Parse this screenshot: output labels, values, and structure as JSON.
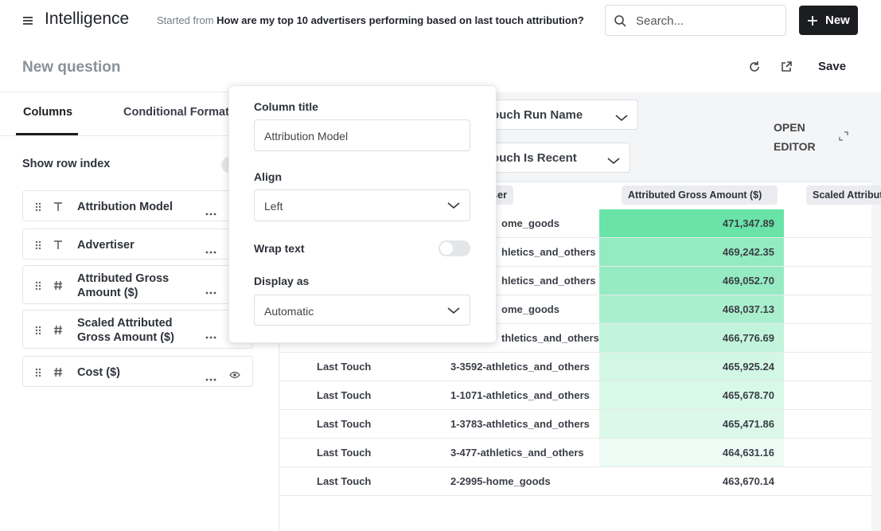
{
  "header": {
    "app_title": "Intelligence",
    "started_from_label": "Started from",
    "started_from_question": "How are my top 10 advertisers performing based on last touch attribution?",
    "search_placeholder": "Search...",
    "new_button": "New"
  },
  "toolbar": {
    "title": "New question",
    "save": "Save"
  },
  "sidebar": {
    "tabs": [
      "Columns",
      "Conditional Formatting"
    ],
    "show_row_index": "Show row index",
    "columns": [
      {
        "name": "Attribution Model",
        "kind": "text"
      },
      {
        "name": "Advertiser",
        "kind": "text"
      },
      {
        "name": "Attributed Gross Amount ($)",
        "kind": "number"
      },
      {
        "name": "Scaled Attributed Gross Amount ($)",
        "kind": "number"
      },
      {
        "name": "Cost ($)",
        "kind": "number"
      }
    ]
  },
  "popover": {
    "column_title_label": "Column title",
    "column_title_value": "Attribution Model",
    "align_label": "Align",
    "align_value": "Left",
    "wrap_text_label": "Wrap text",
    "display_as_label": "Display as",
    "display_as_value": "Automatic"
  },
  "filters": [
    "Last Touch Run Name",
    "Last Touch Is Recent"
  ],
  "open_editor": "OPEN EDITOR",
  "table": {
    "headers": [
      "ser",
      "Attributed Gross Amount ($)",
      "Scaled Attributed Gross Amount ($)"
    ],
    "rows": [
      {
        "advertiser": "ome_goods",
        "amount": "471,347.89"
      },
      {
        "advertiser": "hletics_and_others",
        "amount": "469,242.35"
      },
      {
        "advertiser": "hletics_and_others",
        "amount": "469,052.70"
      },
      {
        "advertiser": "ome_goods",
        "amount": "468,037.13"
      },
      {
        "advertiser": "thletics_and_others",
        "amount": "466,776.69"
      },
      {
        "model": "Last Touch",
        "advertiser": "3-3592-athletics_and_others",
        "amount": "465,925.24"
      },
      {
        "model": "Last Touch",
        "advertiser": "1-1071-athletics_and_others",
        "amount": "465,678.70"
      },
      {
        "model": "Last Touch",
        "advertiser": "1-3783-athletics_and_others",
        "amount": "465,471.86"
      },
      {
        "model": "Last Touch",
        "advertiser": "3-477-athletics_and_others",
        "amount": "464,631.16"
      },
      {
        "model": "Last Touch",
        "advertiser": "2-2995-home_goods",
        "amount": "463,670.14"
      }
    ]
  }
}
